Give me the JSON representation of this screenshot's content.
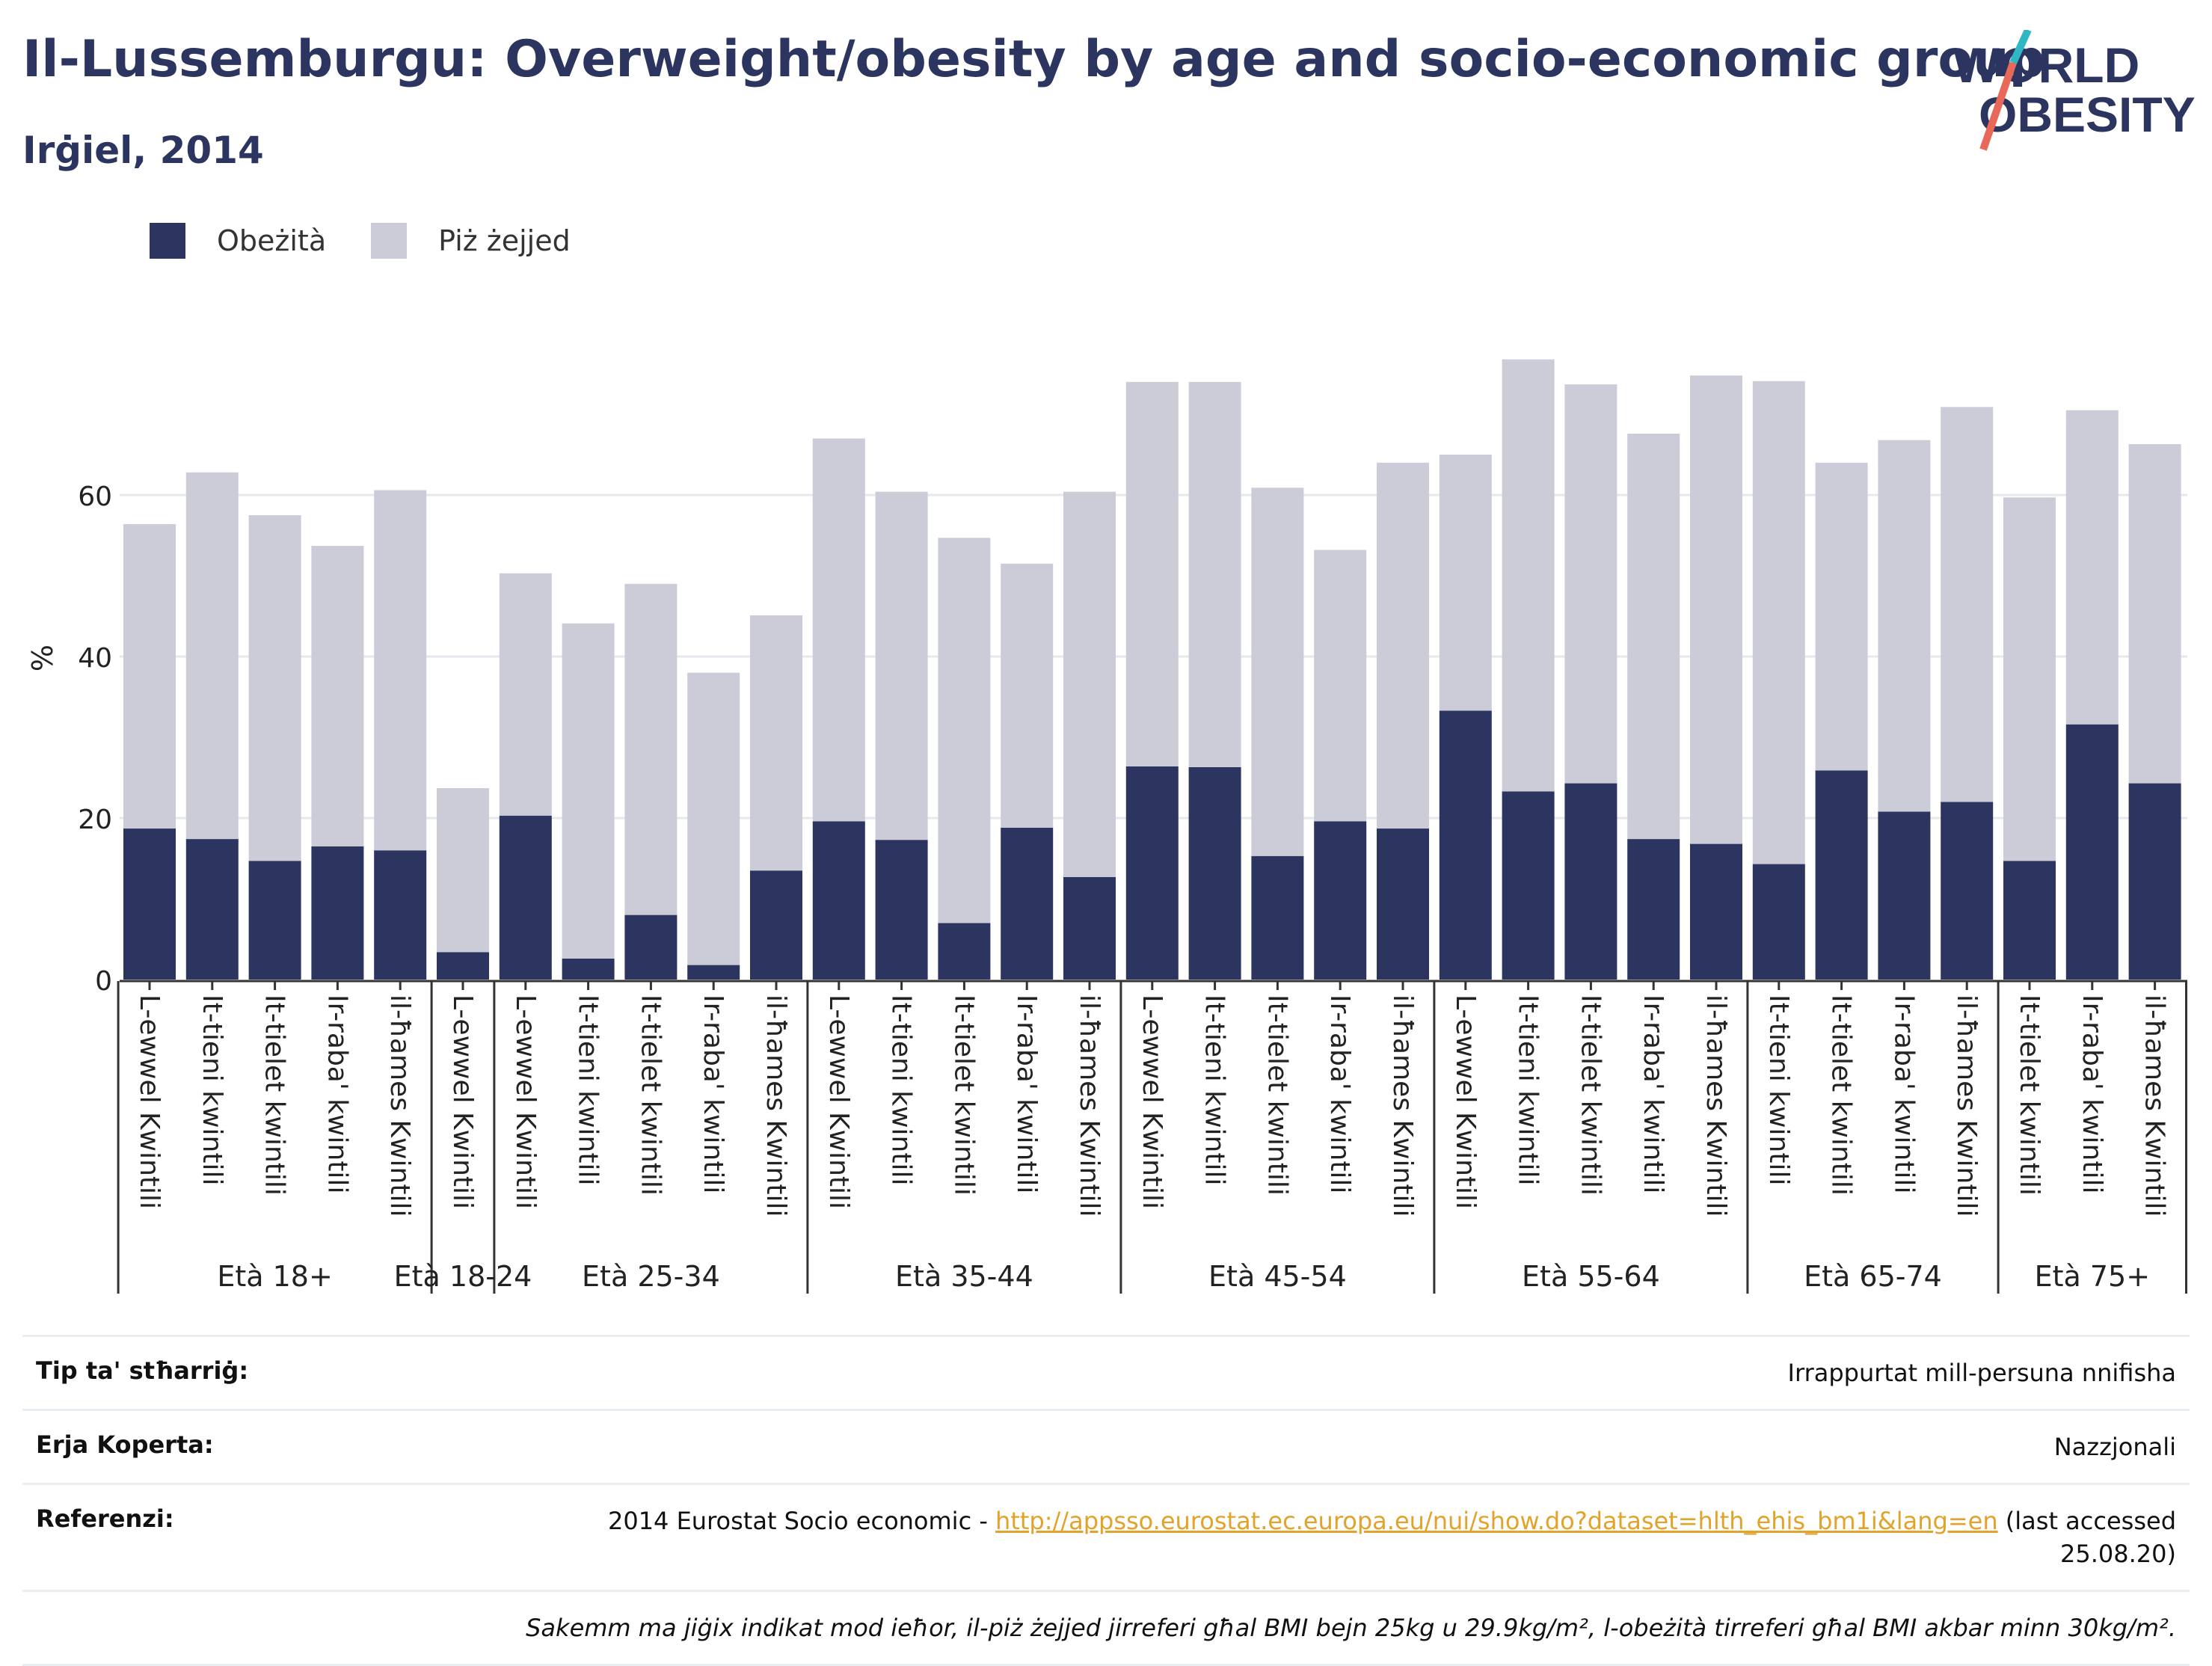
{
  "header": {
    "title": "Il-Lussemburgu: Overweight/obesity by age and socio-economic group",
    "subtitle": "Irġiel, 2014",
    "logo_line1": "WORLD",
    "logo_line2": "OBESITY"
  },
  "legend": {
    "obesity_label": "Obeżità",
    "overweight_label": "Piż żejjed"
  },
  "colors": {
    "obesity": "#2c3560",
    "overweight": "#cbccd8",
    "logo_slash": "#e8695a",
    "logo_accent": "#2fb8c4"
  },
  "chart_data": {
    "type": "bar",
    "stacked": true,
    "ylabel": "%",
    "ylim": [
      0,
      80
    ],
    "yticks": [
      0,
      20,
      40,
      60
    ],
    "grid": true,
    "legend_position": "top-left",
    "groups": [
      {
        "label": "Età 18+",
        "categories": [
          "L-ewwel Kwintili",
          "It-tieni kwintili",
          "It-tielet kwintili",
          "Ir-raba' kwintili",
          "il-ħames Kwintili"
        ]
      },
      {
        "label": "Età 18-24",
        "categories": [
          "L-ewwel Kwintili"
        ]
      },
      {
        "label": "Età 25-34",
        "categories": [
          "L-ewwel Kwintili",
          "It-tieni kwintili",
          "It-tielet kwintili",
          "Ir-raba' kwintili",
          "il-ħames Kwintili"
        ]
      },
      {
        "label": "Età 35-44",
        "categories": [
          "L-ewwel Kwintili",
          "It-tieni kwintili",
          "It-tielet kwintili",
          "Ir-raba' kwintili",
          "il-ħames Kwintili"
        ]
      },
      {
        "label": "Età 45-54",
        "categories": [
          "L-ewwel Kwintili",
          "It-tieni kwintili",
          "It-tielet kwintili",
          "Ir-raba' kwintili",
          "il-ħames Kwintili"
        ]
      },
      {
        "label": "Età 55-64",
        "categories": [
          "L-ewwel Kwintili",
          "It-tieni kwintili",
          "It-tielet kwintili",
          "Ir-raba' kwintili",
          "il-ħames Kwintili"
        ]
      },
      {
        "label": "Età 65-74",
        "categories": [
          "It-tieni kwintili",
          "It-tielet kwintili",
          "Ir-raba' kwintili",
          "il-ħames Kwintili"
        ]
      },
      {
        "label": "Età 75+",
        "categories": [
          "It-tielet kwintili",
          "Ir-raba' kwintili",
          "il-ħames Kwintili"
        ]
      }
    ],
    "series": [
      {
        "name": "Obeżità",
        "values": [
          18.7,
          17.4,
          14.7,
          16.5,
          16.0,
          3.4,
          20.3,
          2.6,
          8.0,
          1.8,
          13.5,
          19.6,
          17.3,
          7.0,
          18.8,
          12.7,
          26.4,
          26.3,
          15.3,
          19.6,
          18.7,
          33.3,
          23.3,
          24.3,
          17.4,
          16.8,
          14.3,
          25.9,
          20.8,
          22.0,
          14.7,
          31.6,
          24.3
        ]
      },
      {
        "name": "Piż żejjed",
        "values": [
          37.7,
          45.4,
          42.8,
          37.2,
          44.6,
          20.3,
          30.0,
          41.5,
          41.0,
          36.2,
          31.6,
          47.4,
          43.1,
          47.7,
          32.7,
          47.7,
          47.6,
          47.7,
          45.6,
          33.6,
          45.3,
          31.7,
          53.5,
          49.4,
          50.2,
          58.0,
          59.8,
          38.1,
          46.0,
          48.9,
          45.0,
          38.9,
          42.0
        ]
      }
    ]
  },
  "info": {
    "measure_key": "Tip ta' stħarriġ:",
    "measure_val": "Irrappurtat mill-persuna nnifisha",
    "coverage_key": "Erja Koperta:",
    "coverage_val": "Nazzjonali",
    "ref_key": "Referenzi:",
    "ref_prefix": "2014 Eurostat Socio economic - ",
    "ref_link": "http://appsso.eurostat.ec.europa.eu/nui/show.do?dataset=hlth_ehis_bm1i&lang=en",
    "ref_suffix": " (last accessed",
    "ref_date": "25.08.20)",
    "note": "Sakemm ma jiġix indikat mod ieħor, il-piż żejjed jirreferi għal BMI bejn 25kg u 29.9kg/m², l-obeżità tirreferi għal BMI akbar minn 30kg/m²."
  }
}
